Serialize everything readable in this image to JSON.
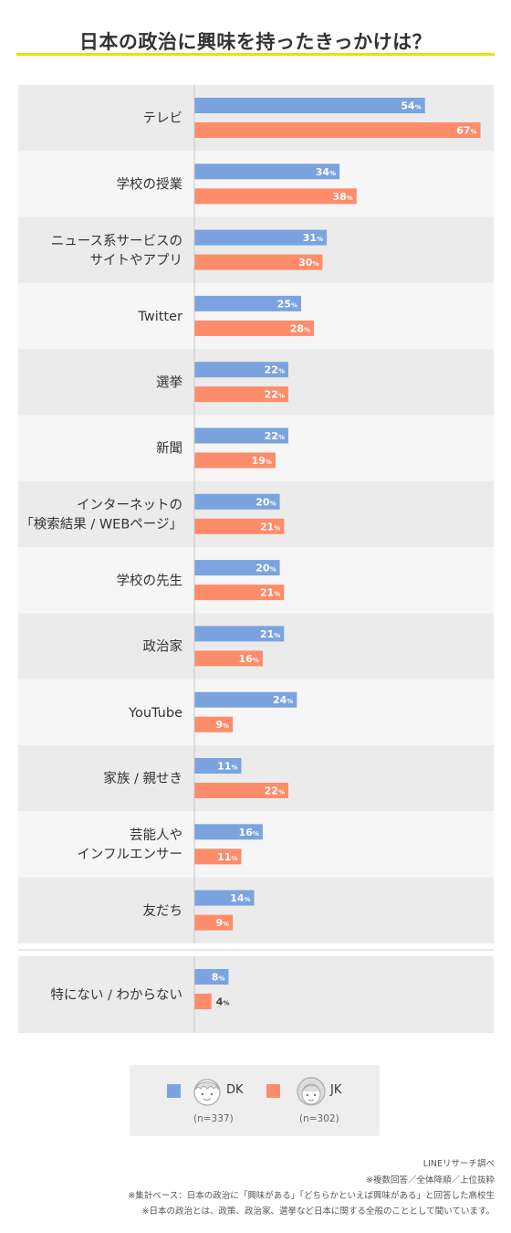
{
  "title": "日本の政治に興味を持ったきっかけは？",
  "colors": {
    "dk": "#7ba3df",
    "jk": "#fc8c6a",
    "row_dark": "#ebebeb",
    "row_light": "#f6f6f6",
    "accent": "#f5d90b"
  },
  "chart_data": {
    "type": "bar",
    "orientation": "horizontal",
    "unit": "%",
    "xlim": [
      0,
      70
    ],
    "grid": false,
    "categories": [
      [
        "テレビ"
      ],
      [
        "学校の授業"
      ],
      [
        "ニュース系サービスの",
        "サイトやアプリ"
      ],
      [
        "Twitter"
      ],
      [
        "選挙"
      ],
      [
        "新聞"
      ],
      [
        "インターネットの",
        "「検索結果 / WEBページ」"
      ],
      [
        "学校の先生"
      ],
      [
        "政治家"
      ],
      [
        "YouTube"
      ],
      [
        "家族 / 親せき"
      ],
      [
        "芸能人や",
        "インフルエンサー"
      ],
      [
        "友だち"
      ],
      [
        "特にない / わからない"
      ]
    ],
    "series": [
      {
        "name": "DK",
        "values": [
          54,
          34,
          31,
          25,
          22,
          22,
          20,
          20,
          21,
          24,
          11,
          16,
          14,
          8
        ]
      },
      {
        "name": "JK",
        "values": [
          67,
          38,
          30,
          28,
          22,
          19,
          21,
          21,
          16,
          9,
          22,
          11,
          9,
          4
        ]
      }
    ]
  },
  "legend": {
    "items": [
      {
        "name": "DK",
        "n": "(n=337)",
        "icon": "boy-face-icon"
      },
      {
        "name": "JK",
        "n": "(n=302)",
        "icon": "girl-face-icon"
      }
    ]
  },
  "footnotes": [
    "LINEリサーチ調べ",
    "※複数回答／全体降順／上位抜粋",
    "※集計ベース：日本の政治に「興味がある」「どちらかといえば興味がある」と回答した高校生",
    "※日本の政治とは、政策、政治家、選挙など日本に関する全般のこととして聞いています。"
  ]
}
